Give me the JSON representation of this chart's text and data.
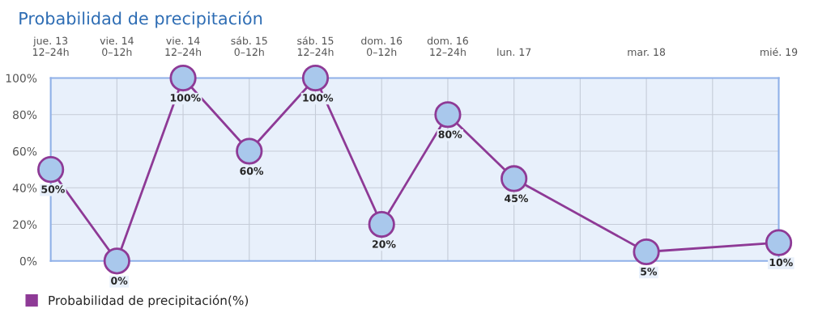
{
  "chart_data": {
    "type": "line",
    "title": "Probabilidad de precipitación",
    "categories": [
      "jue. 13\n12–24h",
      "vie. 14\n0–12h",
      "vie. 14\n12–24h",
      "sáb. 15\n0–12h",
      "sáb. 15\n12–24h",
      "dom. 16\n0–12h",
      "dom. 16\n12–24h",
      "lun. 17",
      null,
      "mar. 18",
      null,
      "mié. 19"
    ],
    "ylim": [
      0,
      100
    ],
    "yticks": [
      {
        "value": 0,
        "label": "0%"
      },
      {
        "value": 20,
        "label": "20%"
      },
      {
        "value": 40,
        "label": "40%"
      },
      {
        "value": 60,
        "label": "60%"
      },
      {
        "value": 80,
        "label": "80%"
      },
      {
        "value": 100,
        "label": "100%"
      }
    ],
    "series": [
      {
        "name": "Probabilidad de precipitación(%)",
        "color": "#8e3a96",
        "values": [
          50,
          0,
          100,
          60,
          100,
          20,
          80,
          45,
          null,
          5,
          null,
          10
        ],
        "value_labels": [
          "50%",
          "0%",
          "100%",
          "60%",
          "100%",
          "20%",
          "80%",
          "45%",
          null,
          "5%",
          null,
          "10%"
        ]
      }
    ],
    "marker": "circle",
    "grid": true,
    "legend": "bottom left"
  }
}
